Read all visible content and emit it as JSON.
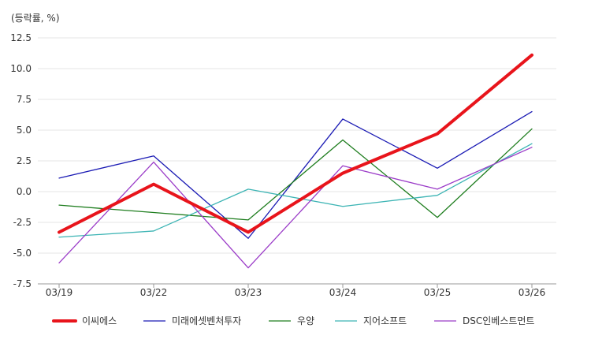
{
  "chart_data": {
    "type": "line",
    "unit_label": "(등락률, %)",
    "categories": [
      "03/19",
      "03/22",
      "03/23",
      "03/24",
      "03/25",
      "03/26"
    ],
    "ylim": [
      -7.5,
      12.5
    ],
    "yticks": [
      12.5,
      10.0,
      7.5,
      5.0,
      2.5,
      0.0,
      -2.5,
      -5.0,
      -7.5
    ],
    "ytick_labels": [
      "12.5",
      "10.0",
      "7.5",
      "5.0",
      "2.5",
      "0.0",
      "-2.5",
      "-5.0",
      "-7.5"
    ],
    "grid": true,
    "legend_position": "bottom",
    "series": [
      {
        "name": "이씨에스",
        "color": "#e8141b",
        "width": 4,
        "values": [
          -3.3,
          0.6,
          -3.3,
          1.5,
          4.7,
          11.1
        ]
      },
      {
        "name": "미래에셋벤처투자",
        "color": "#1a1ab4",
        "width": 1.3,
        "values": [
          1.1,
          2.9,
          -3.8,
          5.9,
          1.9,
          6.5
        ]
      },
      {
        "name": "우양",
        "color": "#1e7d1e",
        "width": 1.3,
        "values": [
          -1.1,
          -1.7,
          -2.3,
          4.2,
          -2.1,
          5.1
        ]
      },
      {
        "name": "지어소프트",
        "color": "#3cb4b4",
        "width": 1.3,
        "values": [
          -3.7,
          -3.2,
          0.2,
          -1.2,
          -0.3,
          3.9
        ]
      },
      {
        "name": "DSC인베스트먼트",
        "color": "#9b3cc8",
        "width": 1.3,
        "values": [
          -5.8,
          2.4,
          -6.2,
          2.1,
          0.2,
          3.6
        ]
      }
    ]
  }
}
